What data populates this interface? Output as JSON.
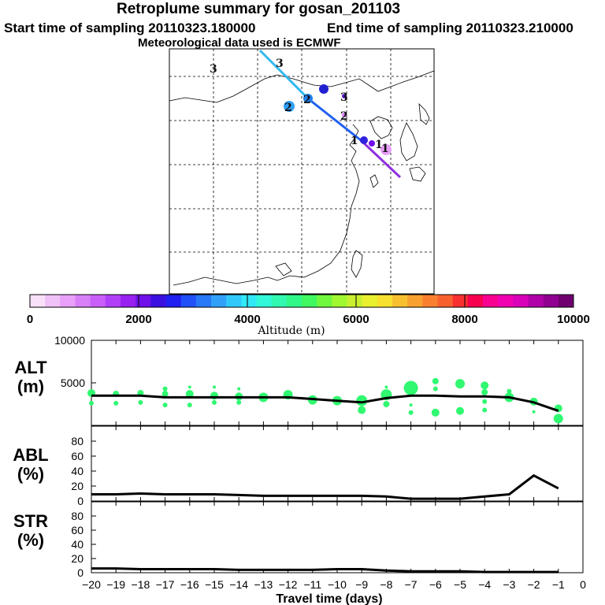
{
  "header": {
    "title": "Retroplume summary for gosan_201103",
    "start": "Start time of sampling 20110323.180000",
    "end": "End time of sampling 20110323.210000",
    "met": "Meteorological data used is ECMWF"
  },
  "map": {
    "trajectory_labels": [
      "3",
      "3",
      "2",
      "2",
      "3",
      "2",
      "1",
      "1",
      "1"
    ]
  },
  "colorbar": {
    "ticks": [
      "0",
      "2000",
      "4000",
      "6000",
      "8000",
      "10000"
    ],
    "label": "Altitude (m)",
    "colors": [
      "#f8e0f8",
      "#f0c0f8",
      "#e8a0f8",
      "#d880f8",
      "#c860f8",
      "#b040f8",
      "#9820f0",
      "#7010e8",
      "#3a10e0",
      "#2020f0",
      "#2050f8",
      "#2878f8",
      "#30a0f8",
      "#30c8f8",
      "#30e8f8",
      "#30f8d8",
      "#30f8b0",
      "#30f888",
      "#40f860",
      "#70f840",
      "#a0f830",
      "#c8f030",
      "#e8f030",
      "#f8e030",
      "#f8c030",
      "#f8a030",
      "#f88030",
      "#f86030",
      "#f83030",
      "#f80050",
      "#f80090",
      "#f000b0",
      "#d800b8",
      "#b000a8",
      "#900090",
      "#700070"
    ]
  },
  "chart_data": [
    {
      "type": "line",
      "panel": "ALT",
      "ylabel_line1": "ALT",
      "ylabel_line2": "(m)",
      "x": [
        -20,
        -19,
        -18,
        -17,
        -16,
        -15,
        -14,
        -13,
        -12,
        -11,
        -10,
        -9,
        -8,
        -7,
        -6,
        -5,
        -4,
        -3,
        -2,
        -1
      ],
      "values": [
        3500,
        3500,
        3500,
        3300,
        3300,
        3300,
        3300,
        3300,
        3300,
        3100,
        2900,
        2700,
        3200,
        3500,
        3500,
        3400,
        3400,
        3300,
        2700,
        1700
      ],
      "ylim": [
        0,
        10000
      ],
      "yticks": [
        "10000",
        "5000"
      ],
      "scatter": [
        {
          "x": -20,
          "y": 3800,
          "r": 5
        },
        {
          "x": -20,
          "y": 2600,
          "r": 3
        },
        {
          "x": -19,
          "y": 3700,
          "r": 4
        },
        {
          "x": -19,
          "y": 2600,
          "r": 3
        },
        {
          "x": -18,
          "y": 3800,
          "r": 4
        },
        {
          "x": -18,
          "y": 2700,
          "r": 3
        },
        {
          "x": -17,
          "y": 4300,
          "r": 3
        },
        {
          "x": -17,
          "y": 3700,
          "r": 4
        },
        {
          "x": -17,
          "y": 2400,
          "r": 3
        },
        {
          "x": -16,
          "y": 4500,
          "r": 2
        },
        {
          "x": -16,
          "y": 3700,
          "r": 5
        },
        {
          "x": -16,
          "y": 2400,
          "r": 3
        },
        {
          "x": -15,
          "y": 4500,
          "r": 2
        },
        {
          "x": -15,
          "y": 3500,
          "r": 5
        },
        {
          "x": -15,
          "y": 2700,
          "r": 3
        },
        {
          "x": -14,
          "y": 4300,
          "r": 2
        },
        {
          "x": -14,
          "y": 3400,
          "r": 5
        },
        {
          "x": -14,
          "y": 2700,
          "r": 3
        },
        {
          "x": -13,
          "y": 3300,
          "r": 6
        },
        {
          "x": -12,
          "y": 3600,
          "r": 6
        },
        {
          "x": -11,
          "y": 3000,
          "r": 6
        },
        {
          "x": -10,
          "y": 2900,
          "r": 6
        },
        {
          "x": -9,
          "y": 2900,
          "r": 7
        },
        {
          "x": -9,
          "y": 1800,
          "r": 5
        },
        {
          "x": -8,
          "y": 4500,
          "r": 2
        },
        {
          "x": -8,
          "y": 3600,
          "r": 7
        },
        {
          "x": -8,
          "y": 2500,
          "r": 4
        },
        {
          "x": -7,
          "y": 4400,
          "r": 9
        },
        {
          "x": -7,
          "y": 2400,
          "r": 2
        },
        {
          "x": -7,
          "y": 1500,
          "r": 3
        },
        {
          "x": -6,
          "y": 5200,
          "r": 4
        },
        {
          "x": -6,
          "y": 4300,
          "r": 3
        },
        {
          "x": -6,
          "y": 1500,
          "r": 5
        },
        {
          "x": -5,
          "y": 4900,
          "r": 6
        },
        {
          "x": -5,
          "y": 1700,
          "r": 5
        },
        {
          "x": -4,
          "y": 4700,
          "r": 5
        },
        {
          "x": -4,
          "y": 3900,
          "r": 4
        },
        {
          "x": -4,
          "y": 2800,
          "r": 3
        },
        {
          "x": -4,
          "y": 1800,
          "r": 3
        },
        {
          "x": -3,
          "y": 4000,
          "r": 3
        },
        {
          "x": -3,
          "y": 3300,
          "r": 6
        },
        {
          "x": -2,
          "y": 2800,
          "r": 5
        },
        {
          "x": -2,
          "y": 1600,
          "r": 2
        },
        {
          "x": -1,
          "y": 2000,
          "r": 5
        },
        {
          "x": -1,
          "y": 800,
          "r": 6
        }
      ]
    },
    {
      "type": "line",
      "panel": "ABL",
      "ylabel_line1": "ABL",
      "ylabel_line2": "(%)",
      "x": [
        -20,
        -19,
        -18,
        -17,
        -16,
        -15,
        -14,
        -13,
        -12,
        -11,
        -10,
        -9,
        -8,
        -7,
        -6,
        -5,
        -4,
        -3,
        -2,
        -1
      ],
      "values": [
        9,
        9,
        10,
        9,
        9,
        9,
        8,
        7,
        7,
        7,
        7,
        7,
        6,
        3,
        3,
        3,
        6,
        9,
        34,
        17
      ],
      "ylim": [
        0,
        100
      ],
      "yticks": [
        "80",
        "60",
        "40",
        "20",
        "0"
      ]
    },
    {
      "type": "line",
      "panel": "STR",
      "ylabel_line1": "STR",
      "ylabel_line2": "(%)",
      "x": [
        -20,
        -19,
        -18,
        -17,
        -16,
        -15,
        -14,
        -13,
        -12,
        -11,
        -10,
        -9,
        -8,
        -7,
        -6,
        -5,
        -4,
        -3,
        -2,
        -1
      ],
      "values": [
        6,
        6,
        5,
        5,
        5,
        5,
        4,
        4,
        4,
        4,
        5,
        5,
        3,
        2,
        2,
        2,
        1,
        1,
        1,
        1
      ],
      "ylim": [
        0,
        100
      ],
      "yticks": [
        "80",
        "60",
        "40",
        "20",
        "0"
      ],
      "xticks": [
        "−20",
        "−19",
        "−18",
        "−17",
        "−16",
        "−15",
        "−14",
        "−13",
        "−12",
        "−11",
        "−10",
        "−9",
        "−8",
        "−7",
        "−6",
        "−5",
        "−4",
        "−3",
        "−2",
        "−1",
        "0"
      ],
      "xlabel": "Travel time (days)"
    }
  ]
}
